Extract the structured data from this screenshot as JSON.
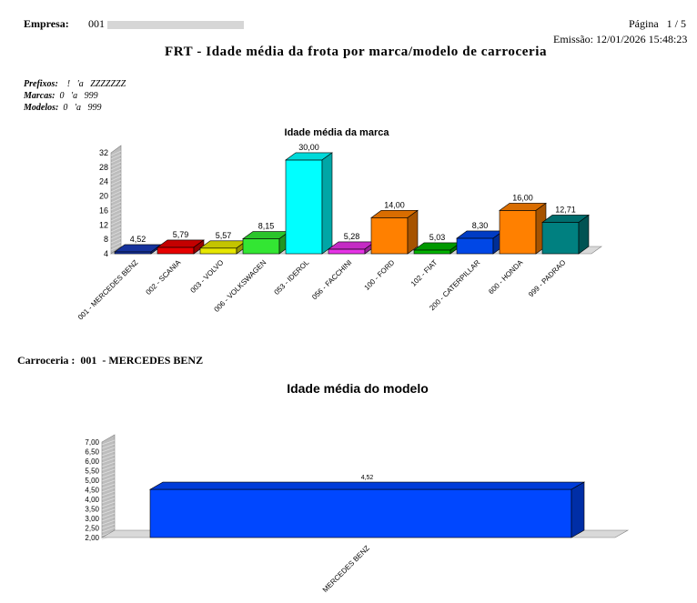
{
  "header": {
    "empresa_label": "Empresa:",
    "empresa_code": "001",
    "page_label": "Página",
    "page_value": "1 / 5",
    "issue_label": "Emissão:",
    "issue_value": "12/01/2026 15:48:23"
  },
  "report": {
    "title": "FRT - Idade média da frota por marca/modelo de carroceria"
  },
  "filters": {
    "prefixos_label": "Prefixos:",
    "prefixos_value": "!   'a   ZZZZZZZ",
    "marcas_label": "Marcas:",
    "marcas_value": "0   'a   999",
    "modelos_label": "Modelos:",
    "modelos_value": "0   'a   999"
  },
  "section": {
    "carroceria_label": "Carroceria :",
    "carroceria_value": "001  - MERCEDES BENZ"
  },
  "chart_data": [
    {
      "type": "bar",
      "title": "Idade média da marca",
      "categories": [
        "001 - MERCEDES BENZ",
        "002 - SCANIA",
        "003 - VOLVO",
        "006 - VOLKSWAGEN",
        "053 - IDEROL",
        "056 - FACCHINI",
        "100 - FORD",
        "102 - FIAT",
        "200 - CATERPILLAR",
        "600 - HONDA",
        "999 - PADRAO"
      ],
      "values": [
        4.52,
        5.79,
        5.57,
        8.15,
        30.0,
        5.28,
        14.0,
        5.03,
        8.3,
        16.0,
        12.71
      ],
      "value_labels": [
        "4,52",
        "5,79",
        "5,57",
        "8,15",
        "30,00",
        "5,28",
        "14,00",
        "5,03",
        "8,30",
        "16,00",
        "12,71"
      ],
      "colors": [
        "#1a3bb8",
        "#e60000",
        "#e6e600",
        "#33e633",
        "#00ffff",
        "#e633e6",
        "#ff8000",
        "#00b300",
        "#0047e6",
        "#ff8000",
        "#008080"
      ],
      "yticks": [
        "4",
        "8",
        "12",
        "16",
        "20",
        "24",
        "28",
        "32"
      ],
      "ylim": [
        4,
        32
      ],
      "grid": false
    },
    {
      "type": "bar",
      "title": "Idade média do modelo",
      "categories": [
        "MERCEDES  BENZ"
      ],
      "values": [
        4.52
      ],
      "value_labels": [
        "4,52"
      ],
      "colors": [
        "#0047ff"
      ],
      "yticks": [
        "2,00",
        "2,50",
        "3,00",
        "3,50",
        "4,00",
        "4,50",
        "5,00",
        "5,50",
        "6,00",
        "6,50",
        "7,00"
      ],
      "ylim": [
        2,
        7
      ],
      "grid": false
    }
  ]
}
